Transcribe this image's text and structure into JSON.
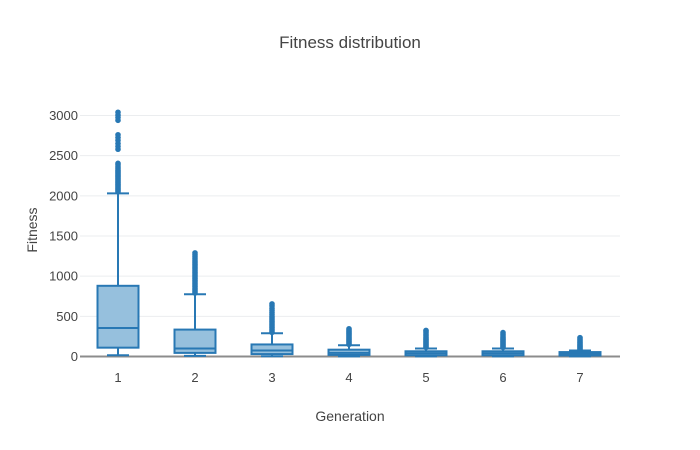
{
  "chart_data": {
    "type": "box",
    "title": "Fitness distribution",
    "xlabel": "Generation",
    "ylabel": "Fitness",
    "categories": [
      "1",
      "2",
      "3",
      "4",
      "5",
      "6",
      "7"
    ],
    "yticks": [
      0,
      500,
      1000,
      1500,
      2000,
      2500,
      3000
    ],
    "ylim": [
      0,
      3140
    ],
    "grid": true,
    "legend": "none",
    "colors": {
      "box_line": "#2878b4",
      "box_fill": "#96c0dd",
      "grid_line": "#ebedef",
      "zero_line": "#8c8c8c",
      "text": "#444444",
      "background": "#ffffff"
    },
    "boxes": [
      {
        "category": "1",
        "low": 15,
        "q1": 110,
        "median": 355,
        "q3": 880,
        "high": 2030,
        "outliers": [
          2050,
          2065,
          2080,
          2095,
          2110,
          2125,
          2140,
          2155,
          2170,
          2185,
          2200,
          2215,
          2230,
          2245,
          2260,
          2275,
          2290,
          2305,
          2320,
          2340,
          2360,
          2385,
          2405,
          2580,
          2615,
          2650,
          2690,
          2725,
          2760,
          2940,
          2975,
          3005,
          3040
        ]
      },
      {
        "category": "2",
        "low": 8,
        "q1": 45,
        "median": 100,
        "q3": 335,
        "high": 775,
        "outliers": [
          790,
          810,
          830,
          850,
          870,
          890,
          910,
          930,
          950,
          970,
          990,
          1010,
          1030,
          1050,
          1070,
          1090,
          1110,
          1130,
          1150,
          1170,
          1190,
          1215,
          1240,
          1265,
          1290
        ]
      },
      {
        "category": "3",
        "low": 3,
        "q1": 30,
        "median": 75,
        "q3": 150,
        "high": 290,
        "outliers": [
          300,
          320,
          340,
          360,
          380,
          400,
          420,
          440,
          460,
          480,
          500,
          525,
          550,
          575,
          600,
          630,
          655
        ]
      },
      {
        "category": "4",
        "low": 2,
        "q1": 20,
        "median": 45,
        "q3": 85,
        "high": 140,
        "outliers": [
          150,
          165,
          180,
          195,
          210,
          225,
          240,
          255,
          270,
          285,
          300,
          315,
          330,
          345
        ]
      },
      {
        "category": "5",
        "low": 2,
        "q1": 15,
        "median": 40,
        "q3": 65,
        "high": 100,
        "outliers": [
          112,
          126,
          140,
          154,
          168,
          182,
          196,
          210,
          224,
          240,
          258,
          276,
          295,
          315,
          325
        ]
      },
      {
        "category": "6",
        "low": 2,
        "q1": 15,
        "median": 40,
        "q3": 65,
        "high": 100,
        "outliers": [
          112,
          126,
          140,
          154,
          168,
          182,
          196,
          210,
          224,
          240,
          258,
          278,
          298
        ]
      },
      {
        "category": "7",
        "low": 2,
        "q1": 12,
        "median": 35,
        "q3": 55,
        "high": 75,
        "outliers": [
          85,
          97,
          109,
          121,
          133,
          145,
          158,
          172,
          186,
          202,
          218,
          235
        ]
      }
    ]
  }
}
